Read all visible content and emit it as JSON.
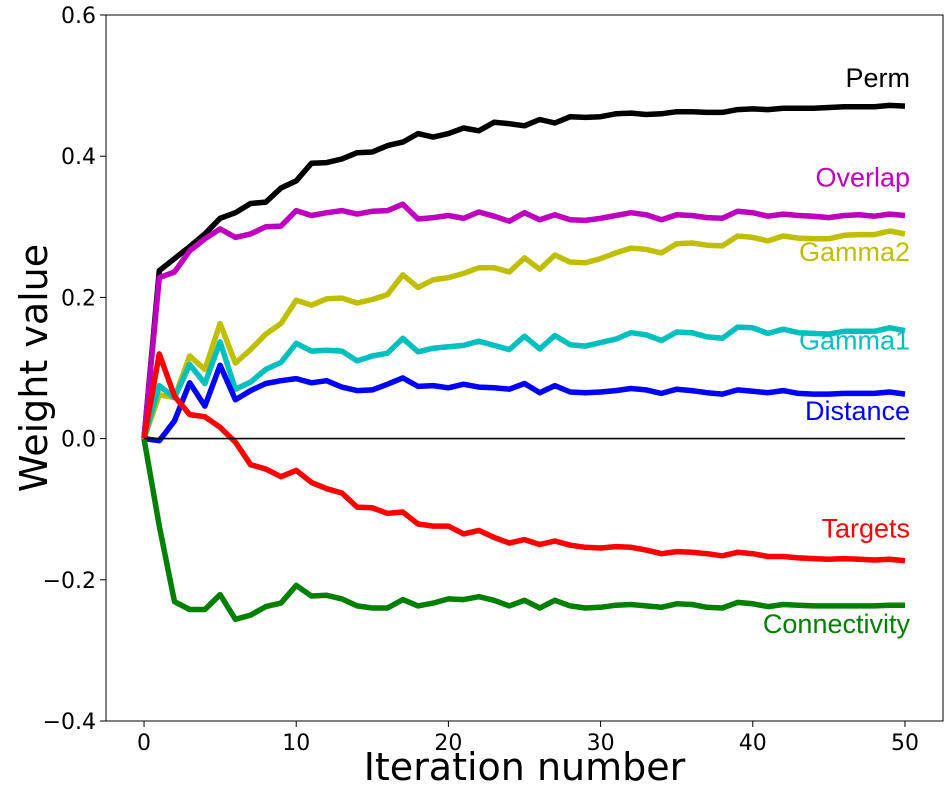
{
  "chart_data": {
    "type": "line",
    "title": "",
    "xlabel": "Iteration number",
    "ylabel": "Weight value",
    "xlim": [
      -2.5,
      52.5
    ],
    "ylim": [
      -0.4,
      0.6
    ],
    "xticks": [
      0,
      10,
      20,
      30,
      40,
      50
    ],
    "xtick_labels": [
      "0",
      "10",
      "20",
      "30",
      "40",
      "50"
    ],
    "yticks": [
      -0.4,
      -0.2,
      0.0,
      0.2,
      0.4,
      0.6
    ],
    "ytick_labels": [
      "−0.4",
      "−0.2",
      "0.0",
      "0.2",
      "0.4",
      "0.6"
    ],
    "grid": false,
    "legend": "inline labels at right end of each series",
    "reference_line": {
      "y": 0.0,
      "x_range": [
        0,
        50
      ],
      "color": "#000000"
    },
    "series": [
      {
        "name": "Perm",
        "color": "#000000",
        "values": [
          0.0,
          0.238,
          0.255,
          0.272,
          0.29,
          0.312,
          0.32,
          0.333,
          0.335,
          0.355,
          0.365,
          0.39,
          0.391,
          0.396,
          0.405,
          0.406,
          0.415,
          0.42,
          0.432,
          0.427,
          0.432,
          0.44,
          0.436,
          0.448,
          0.446,
          0.443,
          0.452,
          0.447,
          0.456,
          0.455,
          0.456,
          0.46,
          0.461,
          0.459,
          0.46,
          0.463,
          0.463,
          0.462,
          0.462,
          0.466,
          0.467,
          0.466,
          0.468,
          0.468,
          0.468,
          0.469,
          0.47,
          0.47,
          0.47,
          0.472,
          0.471
        ]
      },
      {
        "name": "Overlap",
        "color": "#bf00bf",
        "values": [
          0.0,
          0.228,
          0.236,
          0.266,
          0.283,
          0.297,
          0.285,
          0.29,
          0.3,
          0.301,
          0.323,
          0.316,
          0.32,
          0.323,
          0.318,
          0.322,
          0.323,
          0.332,
          0.311,
          0.313,
          0.316,
          0.312,
          0.321,
          0.315,
          0.308,
          0.32,
          0.31,
          0.317,
          0.31,
          0.309,
          0.312,
          0.316,
          0.32,
          0.317,
          0.31,
          0.317,
          0.316,
          0.313,
          0.312,
          0.322,
          0.32,
          0.315,
          0.318,
          0.316,
          0.315,
          0.313,
          0.316,
          0.317,
          0.315,
          0.318,
          0.316
        ]
      },
      {
        "name": "Gamma2",
        "color": "#bfbf00",
        "values": [
          0.0,
          0.062,
          0.058,
          0.117,
          0.098,
          0.163,
          0.107,
          0.126,
          0.148,
          0.163,
          0.196,
          0.189,
          0.198,
          0.199,
          0.192,
          0.197,
          0.204,
          0.232,
          0.214,
          0.225,
          0.228,
          0.234,
          0.242,
          0.242,
          0.236,
          0.256,
          0.24,
          0.26,
          0.25,
          0.249,
          0.255,
          0.263,
          0.27,
          0.268,
          0.263,
          0.276,
          0.277,
          0.274,
          0.273,
          0.287,
          0.285,
          0.28,
          0.287,
          0.284,
          0.283,
          0.283,
          0.288,
          0.289,
          0.289,
          0.294,
          0.29
        ]
      },
      {
        "name": "Gamma1",
        "color": "#00bfbf",
        "values": [
          0.0,
          0.075,
          0.058,
          0.105,
          0.078,
          0.137,
          0.07,
          0.08,
          0.098,
          0.108,
          0.135,
          0.124,
          0.125,
          0.124,
          0.11,
          0.117,
          0.121,
          0.142,
          0.123,
          0.128,
          0.13,
          0.132,
          0.138,
          0.132,
          0.126,
          0.145,
          0.127,
          0.146,
          0.133,
          0.131,
          0.136,
          0.141,
          0.15,
          0.147,
          0.139,
          0.151,
          0.15,
          0.144,
          0.142,
          0.158,
          0.157,
          0.149,
          0.155,
          0.15,
          0.149,
          0.148,
          0.152,
          0.152,
          0.152,
          0.157,
          0.153
        ]
      },
      {
        "name": "Distance",
        "color": "#0000ff",
        "values": [
          0.0,
          -0.003,
          0.025,
          0.079,
          0.046,
          0.104,
          0.055,
          0.068,
          0.078,
          0.082,
          0.085,
          0.079,
          0.082,
          0.073,
          0.068,
          0.069,
          0.077,
          0.086,
          0.074,
          0.075,
          0.072,
          0.077,
          0.073,
          0.072,
          0.07,
          0.078,
          0.065,
          0.075,
          0.066,
          0.065,
          0.066,
          0.068,
          0.071,
          0.069,
          0.064,
          0.07,
          0.068,
          0.065,
          0.063,
          0.069,
          0.067,
          0.065,
          0.068,
          0.064,
          0.063,
          0.063,
          0.064,
          0.064,
          0.064,
          0.066,
          0.063
        ]
      },
      {
        "name": "Targets",
        "color": "#ff0000",
        "values": [
          0.0,
          0.12,
          0.06,
          0.034,
          0.031,
          0.016,
          -0.005,
          -0.037,
          -0.043,
          -0.054,
          -0.045,
          -0.062,
          -0.071,
          -0.077,
          -0.097,
          -0.098,
          -0.106,
          -0.104,
          -0.121,
          -0.124,
          -0.124,
          -0.135,
          -0.13,
          -0.14,
          -0.148,
          -0.143,
          -0.15,
          -0.145,
          -0.151,
          -0.154,
          -0.155,
          -0.153,
          -0.154,
          -0.158,
          -0.163,
          -0.16,
          -0.161,
          -0.163,
          -0.166,
          -0.161,
          -0.163,
          -0.167,
          -0.167,
          -0.169,
          -0.17,
          -0.171,
          -0.17,
          -0.171,
          -0.172,
          -0.171,
          -0.173
        ]
      },
      {
        "name": "Connectivity",
        "color": "#008000",
        "values": [
          0.0,
          -0.124,
          -0.231,
          -0.242,
          -0.242,
          -0.221,
          -0.256,
          -0.25,
          -0.238,
          -0.233,
          -0.208,
          -0.223,
          -0.222,
          -0.227,
          -0.237,
          -0.24,
          -0.24,
          -0.228,
          -0.237,
          -0.233,
          -0.227,
          -0.228,
          -0.224,
          -0.229,
          -0.237,
          -0.229,
          -0.24,
          -0.229,
          -0.237,
          -0.24,
          -0.239,
          -0.236,
          -0.235,
          -0.237,
          -0.239,
          -0.234,
          -0.235,
          -0.239,
          -0.24,
          -0.232,
          -0.234,
          -0.238,
          -0.235,
          -0.236,
          -0.237,
          -0.237,
          -0.237,
          -0.237,
          -0.237,
          -0.236,
          -0.236
        ]
      }
    ]
  }
}
